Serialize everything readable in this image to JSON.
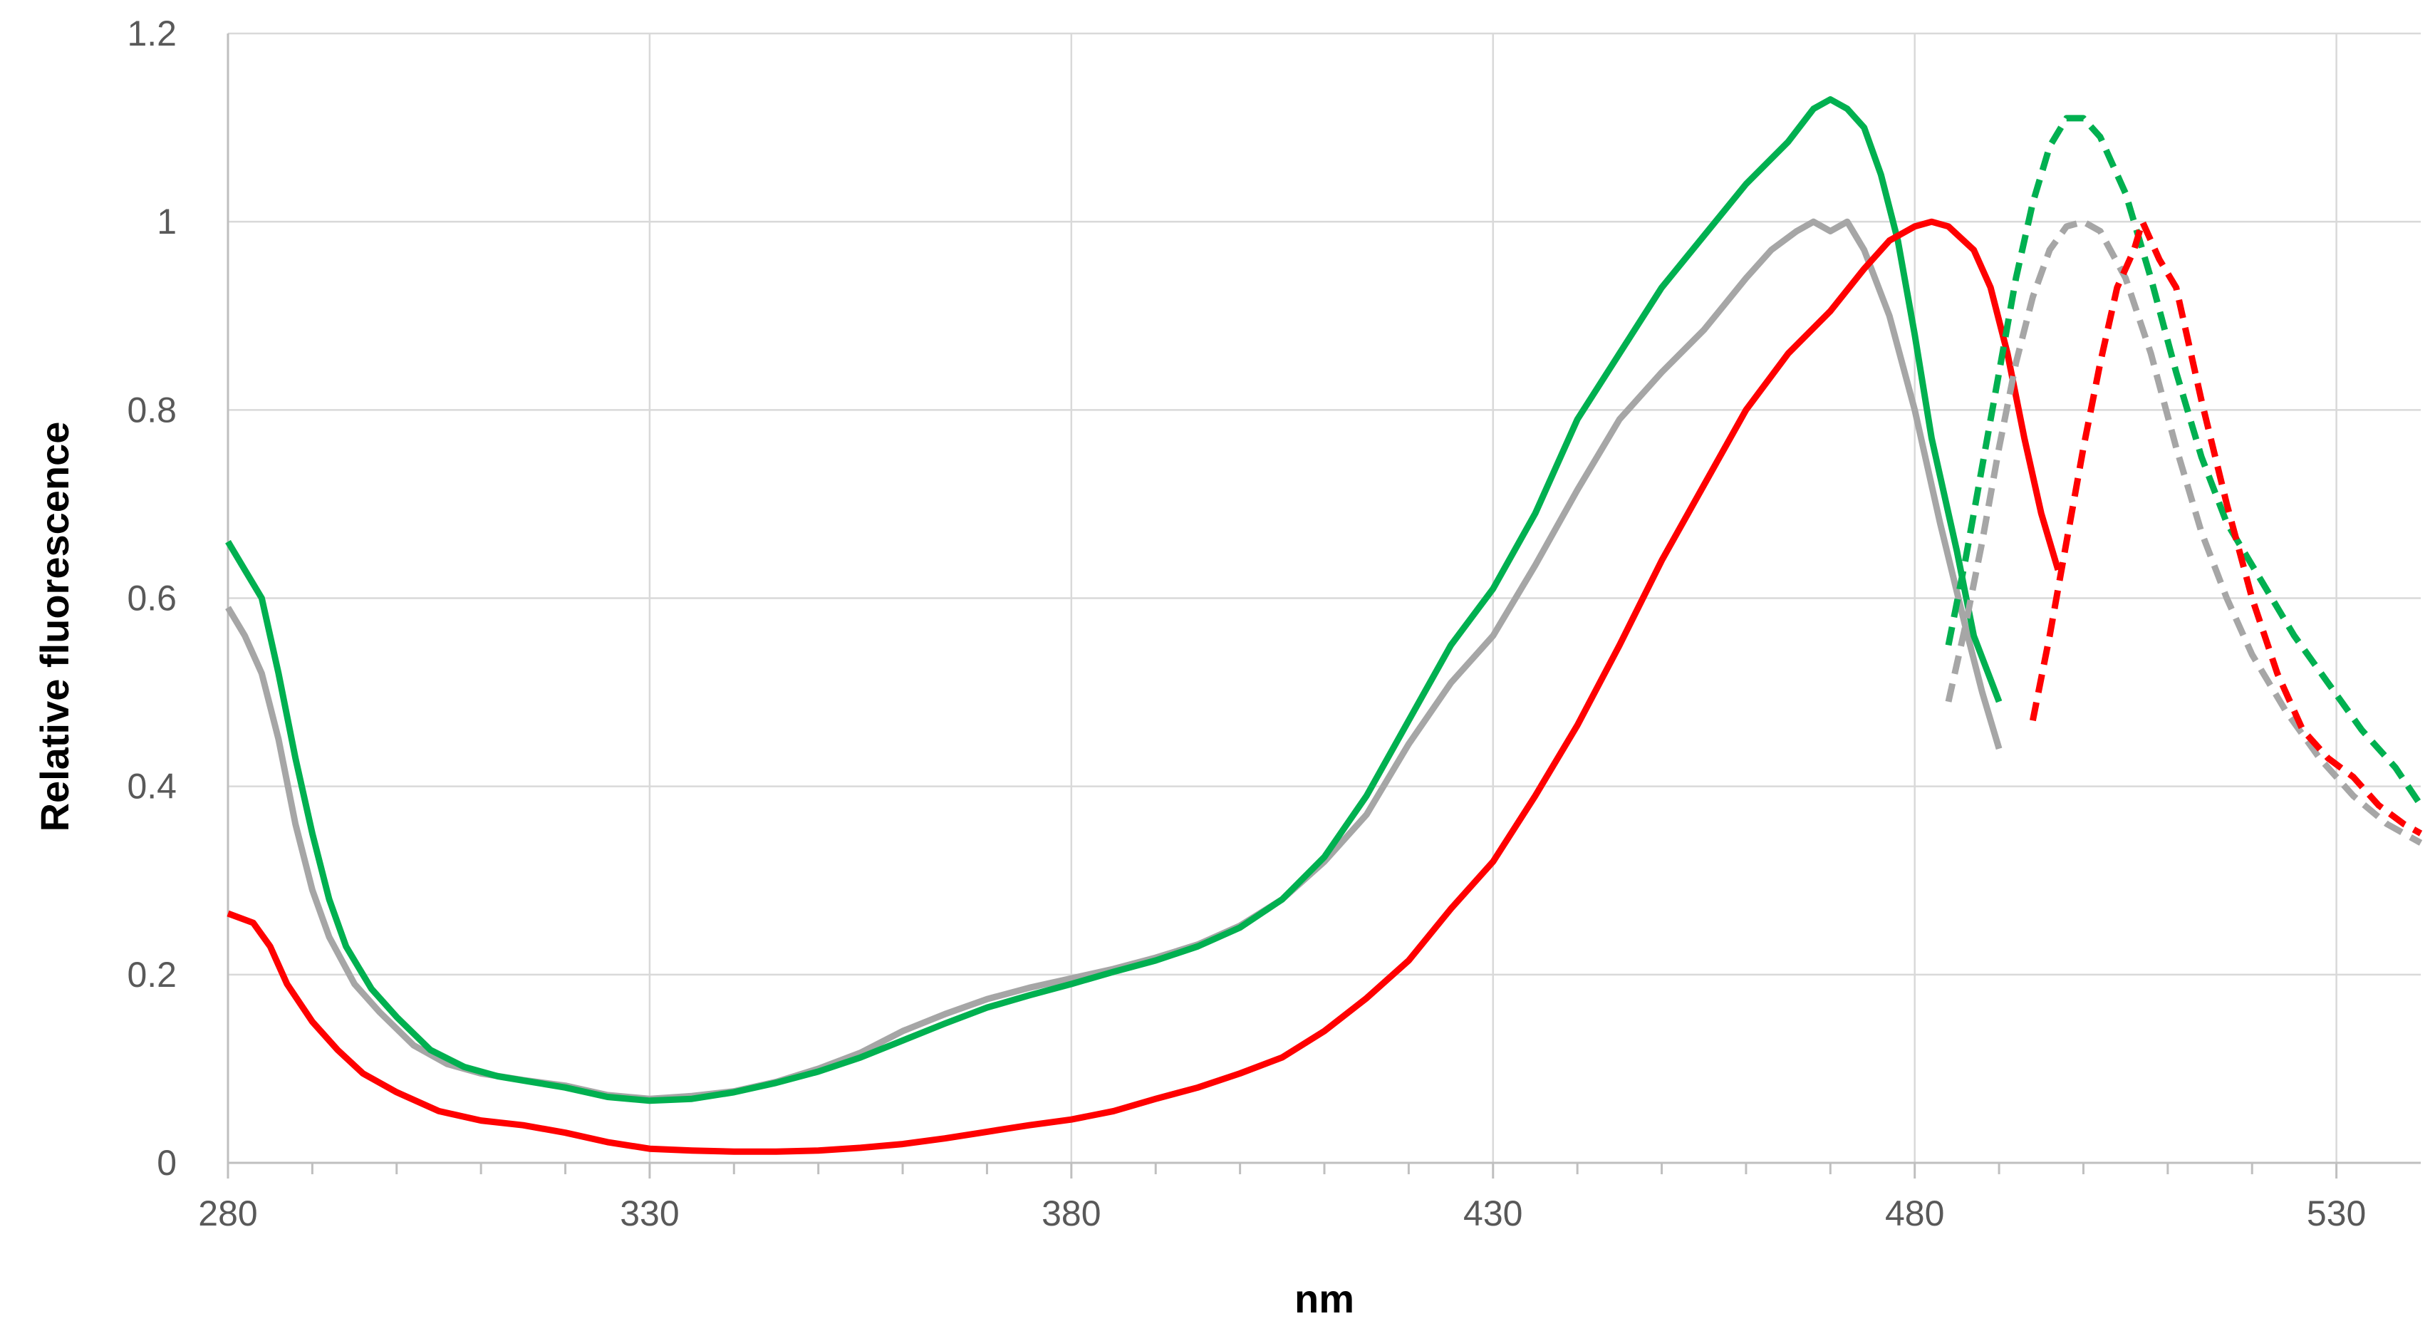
{
  "chart_data": {
    "type": "line",
    "xlabel": "nm",
    "ylabel": "Relative fluorescence",
    "xlim": [
      280,
      540
    ],
    "ylim": [
      0,
      1.2
    ],
    "x_ticks": [
      "280",
      "330",
      "380",
      "430",
      "480",
      "530"
    ],
    "y_ticks": [
      "0",
      "0.2",
      "0.4",
      "0.6",
      "0.8",
      "1",
      "1.2"
    ],
    "grid": true,
    "legend": "none",
    "series": [
      {
        "color": "#a6a6a6",
        "style": "solid",
        "points": [
          [
            280,
            0.59
          ],
          [
            282,
            0.56
          ],
          [
            284,
            0.52
          ],
          [
            286,
            0.45
          ],
          [
            288,
            0.36
          ],
          [
            290,
            0.29
          ],
          [
            292,
            0.24
          ],
          [
            295,
            0.19
          ],
          [
            298,
            0.16
          ],
          [
            302,
            0.125
          ],
          [
            306,
            0.105
          ],
          [
            310,
            0.095
          ],
          [
            315,
            0.088
          ],
          [
            320,
            0.082
          ],
          [
            325,
            0.072
          ],
          [
            330,
            0.068
          ],
          [
            335,
            0.071
          ],
          [
            340,
            0.076
          ],
          [
            345,
            0.086
          ],
          [
            350,
            0.1
          ],
          [
            355,
            0.117
          ],
          [
            360,
            0.14
          ],
          [
            365,
            0.158
          ],
          [
            370,
            0.174
          ],
          [
            375,
            0.186
          ],
          [
            380,
            0.196
          ],
          [
            385,
            0.206
          ],
          [
            390,
            0.218
          ],
          [
            395,
            0.232
          ],
          [
            400,
            0.252
          ],
          [
            405,
            0.28
          ],
          [
            410,
            0.32
          ],
          [
            415,
            0.37
          ],
          [
            420,
            0.445
          ],
          [
            425,
            0.51
          ],
          [
            430,
            0.56
          ],
          [
            435,
            0.635
          ],
          [
            440,
            0.715
          ],
          [
            445,
            0.79
          ],
          [
            450,
            0.84
          ],
          [
            455,
            0.885
          ],
          [
            460,
            0.94
          ],
          [
            463,
            0.97
          ],
          [
            466,
            0.99
          ],
          [
            468,
            1.0
          ],
          [
            470,
            0.99
          ],
          [
            472,
            1.0
          ],
          [
            474,
            0.97
          ],
          [
            477,
            0.9
          ],
          [
            480,
            0.8
          ],
          [
            483,
            0.68
          ],
          [
            486,
            0.57
          ],
          [
            488,
            0.5
          ],
          [
            490,
            0.44
          ]
        ]
      },
      {
        "color": "#00b050",
        "style": "solid",
        "points": [
          [
            280,
            0.66
          ],
          [
            282,
            0.63
          ],
          [
            284,
            0.6
          ],
          [
            286,
            0.52
          ],
          [
            288,
            0.43
          ],
          [
            290,
            0.35
          ],
          [
            292,
            0.28
          ],
          [
            294,
            0.23
          ],
          [
            297,
            0.185
          ],
          [
            300,
            0.155
          ],
          [
            304,
            0.12
          ],
          [
            308,
            0.102
          ],
          [
            312,
            0.092
          ],
          [
            316,
            0.086
          ],
          [
            320,
            0.08
          ],
          [
            325,
            0.07
          ],
          [
            330,
            0.066
          ],
          [
            335,
            0.068
          ],
          [
            340,
            0.075
          ],
          [
            345,
            0.085
          ],
          [
            350,
            0.097
          ],
          [
            355,
            0.112
          ],
          [
            360,
            0.13
          ],
          [
            365,
            0.148
          ],
          [
            370,
            0.165
          ],
          [
            375,
            0.178
          ],
          [
            380,
            0.19
          ],
          [
            385,
            0.203
          ],
          [
            390,
            0.215
          ],
          [
            395,
            0.23
          ],
          [
            400,
            0.25
          ],
          [
            405,
            0.28
          ],
          [
            410,
            0.325
          ],
          [
            415,
            0.39
          ],
          [
            420,
            0.47
          ],
          [
            425,
            0.55
          ],
          [
            430,
            0.61
          ],
          [
            435,
            0.69
          ],
          [
            440,
            0.79
          ],
          [
            445,
            0.86
          ],
          [
            450,
            0.93
          ],
          [
            455,
            0.985
          ],
          [
            460,
            1.04
          ],
          [
            465,
            1.085
          ],
          [
            468,
            1.12
          ],
          [
            470,
            1.13
          ],
          [
            472,
            1.12
          ],
          [
            474,
            1.1
          ],
          [
            476,
            1.05
          ],
          [
            478,
            0.98
          ],
          [
            480,
            0.88
          ],
          [
            482,
            0.77
          ],
          [
            485,
            0.65
          ],
          [
            487,
            0.56
          ],
          [
            490,
            0.49
          ]
        ]
      },
      {
        "color": "#ff0000",
        "style": "solid",
        "points": [
          [
            280,
            0.265
          ],
          [
            283,
            0.255
          ],
          [
            285,
            0.23
          ],
          [
            287,
            0.19
          ],
          [
            290,
            0.15
          ],
          [
            293,
            0.12
          ],
          [
            296,
            0.095
          ],
          [
            300,
            0.075
          ],
          [
            305,
            0.055
          ],
          [
            310,
            0.045
          ],
          [
            315,
            0.04
          ],
          [
            320,
            0.032
          ],
          [
            325,
            0.022
          ],
          [
            330,
            0.015
          ],
          [
            335,
            0.013
          ],
          [
            340,
            0.012
          ],
          [
            345,
            0.012
          ],
          [
            350,
            0.013
          ],
          [
            355,
            0.016
          ],
          [
            360,
            0.02
          ],
          [
            365,
            0.026
          ],
          [
            370,
            0.033
          ],
          [
            375,
            0.04
          ],
          [
            380,
            0.046
          ],
          [
            385,
            0.055
          ],
          [
            390,
            0.068
          ],
          [
            395,
            0.08
          ],
          [
            400,
            0.095
          ],
          [
            405,
            0.112
          ],
          [
            410,
            0.14
          ],
          [
            415,
            0.175
          ],
          [
            420,
            0.215
          ],
          [
            425,
            0.27
          ],
          [
            430,
            0.32
          ],
          [
            435,
            0.39
          ],
          [
            440,
            0.465
          ],
          [
            445,
            0.55
          ],
          [
            450,
            0.64
          ],
          [
            455,
            0.72
          ],
          [
            460,
            0.8
          ],
          [
            465,
            0.86
          ],
          [
            470,
            0.905
          ],
          [
            474,
            0.95
          ],
          [
            477,
            0.98
          ],
          [
            480,
            0.995
          ],
          [
            482,
            1.0
          ],
          [
            484,
            0.995
          ],
          [
            487,
            0.97
          ],
          [
            489,
            0.93
          ],
          [
            491,
            0.86
          ],
          [
            493,
            0.77
          ],
          [
            495,
            0.69
          ],
          [
            497,
            0.63
          ]
        ]
      },
      {
        "color": "#a6a6a6",
        "style": "dashed",
        "points": [
          [
            484,
            0.49
          ],
          [
            486,
            0.57
          ],
          [
            488,
            0.66
          ],
          [
            490,
            0.76
          ],
          [
            492,
            0.85
          ],
          [
            494,
            0.92
          ],
          [
            496,
            0.97
          ],
          [
            498,
            0.995
          ],
          [
            500,
            1.0
          ],
          [
            502,
            0.99
          ],
          [
            505,
            0.94
          ],
          [
            508,
            0.86
          ],
          [
            511,
            0.76
          ],
          [
            514,
            0.67
          ],
          [
            517,
            0.6
          ],
          [
            520,
            0.54
          ],
          [
            524,
            0.48
          ],
          [
            528,
            0.43
          ],
          [
            532,
            0.39
          ],
          [
            536,
            0.36
          ],
          [
            540,
            0.34
          ]
        ]
      },
      {
        "color": "#00b050",
        "style": "dashed",
        "points": [
          [
            484,
            0.55
          ],
          [
            486,
            0.64
          ],
          [
            488,
            0.74
          ],
          [
            490,
            0.84
          ],
          [
            492,
            0.94
          ],
          [
            494,
            1.02
          ],
          [
            496,
            1.08
          ],
          [
            498,
            1.11
          ],
          [
            500,
            1.11
          ],
          [
            502,
            1.09
          ],
          [
            505,
            1.03
          ],
          [
            508,
            0.94
          ],
          [
            511,
            0.84
          ],
          [
            514,
            0.75
          ],
          [
            517,
            0.68
          ],
          [
            521,
            0.62
          ],
          [
            525,
            0.56
          ],
          [
            529,
            0.51
          ],
          [
            533,
            0.46
          ],
          [
            537,
            0.42
          ],
          [
            540,
            0.38
          ]
        ]
      },
      {
        "color": "#ff0000",
        "style": "dashed",
        "points": [
          [
            494,
            0.47
          ],
          [
            496,
            0.56
          ],
          [
            498,
            0.66
          ],
          [
            500,
            0.76
          ],
          [
            502,
            0.85
          ],
          [
            504,
            0.93
          ],
          [
            506,
            0.97
          ],
          [
            507,
            1.0
          ],
          [
            509,
            0.96
          ],
          [
            511,
            0.93
          ],
          [
            514,
            0.81
          ],
          [
            517,
            0.7
          ],
          [
            520,
            0.6
          ],
          [
            523,
            0.52
          ],
          [
            526,
            0.46
          ],
          [
            529,
            0.43
          ],
          [
            532,
            0.41
          ],
          [
            535,
            0.38
          ],
          [
            538,
            0.36
          ],
          [
            540,
            0.35
          ]
        ]
      }
    ]
  }
}
